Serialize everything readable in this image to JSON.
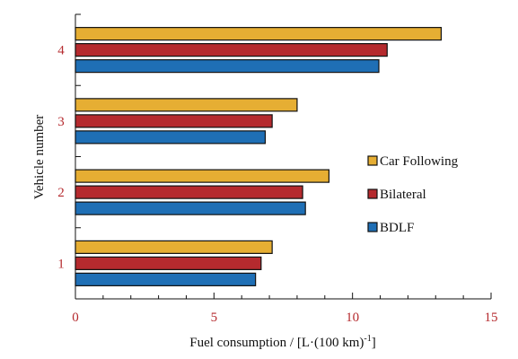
{
  "chart_data": {
    "type": "bar",
    "orientation": "horizontal",
    "categories": [
      "1",
      "2",
      "3",
      "4"
    ],
    "series": [
      {
        "name": "BDLF",
        "color": "#1f6fb5",
        "values": [
          6.5,
          8.3,
          6.85,
          10.95
        ]
      },
      {
        "name": "Bilateral",
        "color": "#b52a2e",
        "values": [
          6.7,
          8.2,
          7.1,
          11.25
        ]
      },
      {
        "name": "Car Following",
        "color": "#e6ae33",
        "values": [
          7.1,
          9.15,
          8.0,
          13.2
        ]
      }
    ],
    "xlabel": "Fuel consumption / [L·(100 km)",
    "xlabel_superscript": "-1",
    "xlabel_tail": "]",
    "ylabel": "Vehicle number",
    "xlim": [
      0,
      15
    ],
    "xticks": [
      "0",
      "5",
      "10",
      "15"
    ],
    "grid": false,
    "legend_position": "right-center",
    "legend_order": [
      "Car Following",
      "Bilateral",
      "BDLF"
    ],
    "tick_label_color": "#b52a2e",
    "axis_text_color": "#111111"
  }
}
